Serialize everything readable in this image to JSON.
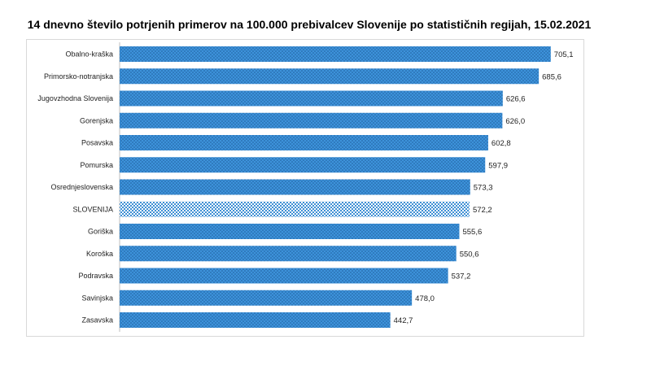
{
  "chart_data": {
    "type": "bar",
    "orientation": "horizontal",
    "title": "14 dnevno število potrjenih primerov na 100.000  prebivalcev Slovenije po statističnih regijah, 15.02.2021",
    "categories": [
      "Obalno-kraška",
      "Primorsko-notranjska",
      "Jugovzhodna Slovenija",
      "Gorenjska",
      "Posavska",
      "Pomurska",
      "Osrednjeslovenska",
      "SLOVENIJA",
      "Goriška",
      "Koroška",
      "Podravska",
      "Savinjska",
      "Zasavska"
    ],
    "values": [
      705.1,
      685.6,
      626.6,
      626.0,
      602.8,
      597.9,
      573.3,
      572.2,
      555.6,
      550.6,
      537.2,
      478.0,
      442.7
    ],
    "value_labels": [
      "705,1",
      "685,6",
      "626,6",
      "626,0",
      "602,8",
      "597,9",
      "573,3",
      "572,2",
      "555,6",
      "550,6",
      "537,2",
      "478,0",
      "442,7"
    ],
    "highlight_category": "SLOVENIJA",
    "xlim": [
      0,
      720
    ],
    "grid": false,
    "legend": "none",
    "colors": {
      "bar": "#3b8fd6",
      "bar_dot": "#1f5f9e",
      "highlight": "#2e86d0",
      "highlight_bg": "#ffffff"
    }
  }
}
